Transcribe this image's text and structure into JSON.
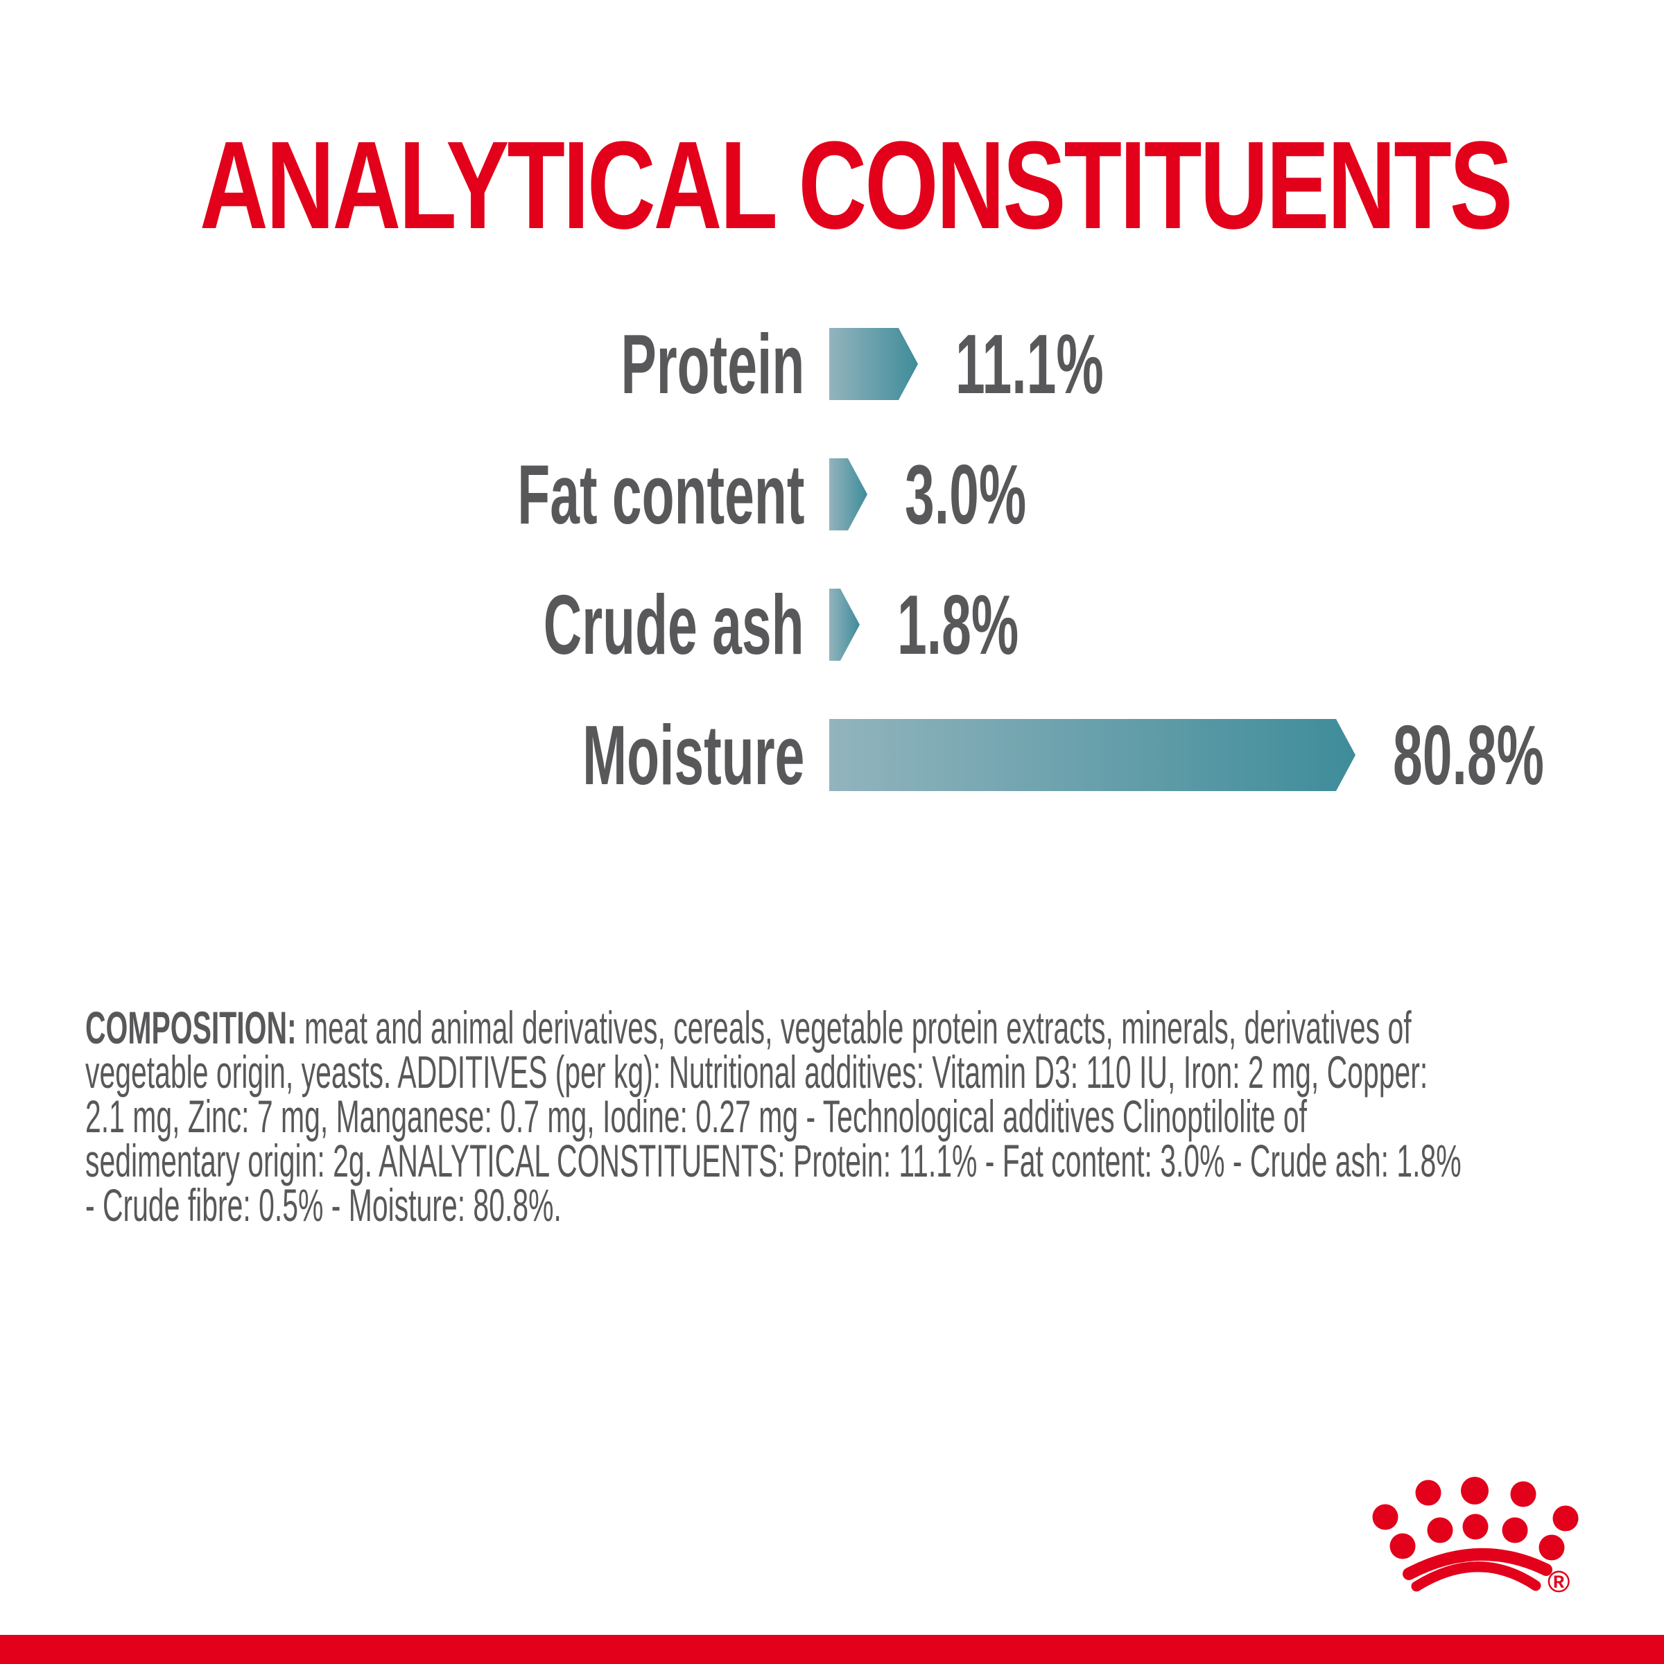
{
  "title": "ANALYTICAL CONSTITUENTS",
  "chart_data": {
    "type": "bar",
    "orientation": "horizontal",
    "title": "ANALYTICAL CONSTITUENTS",
    "unit": "%",
    "categories": [
      "Protein",
      "Fat content",
      "Crude ash",
      "Moisture"
    ],
    "values": [
      11.1,
      3.0,
      1.8,
      80.8
    ],
    "value_labels": [
      "11.1%",
      "3.0%",
      "1.8%",
      "80.8%"
    ],
    "axis": "none",
    "grid": false,
    "legend": false,
    "bar_style": "arrow-pointed-right, teal gradient"
  },
  "composition": {
    "heading": "COMPOSITION:",
    "line1_rest": "meat and animal derivatives, cereals, vegetable protein extracts, minerals, derivatives of",
    "lines": [
      "vegetable origin, yeasts. ADDITIVES (per kg): Nutritional additives: Vitamin D3: 110 IU, Iron: 2 mg, Copper:",
      "2.1 mg, Zinc: 7 mg, Manganese: 0.7 mg, Iodine: 0.27 mg - Technological additives Clinoptilolite of",
      "sedimentary origin: 2g. ANALYTICAL CONSTITUENTS: Protein: 11.1% - Fat content: 3.0% - Crude ash: 1.8%",
      "- Crude fibre: 0.5% - Moisture: 80.8%."
    ]
  },
  "branding": {
    "logo": "royal-canin-crown",
    "registered_mark": "®"
  },
  "colors": {
    "brand_red": "#e2001a",
    "text_gray": "#58585a",
    "bar_gradient_start": "#92b4bd",
    "bar_gradient_end": "#3f8c9a",
    "background": "#ffffff"
  }
}
